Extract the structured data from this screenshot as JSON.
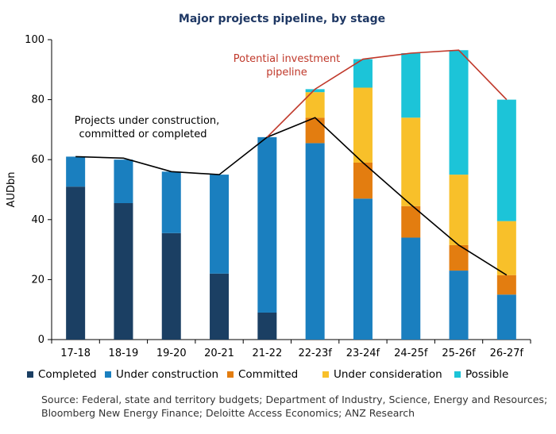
{
  "chart_data": {
    "type": "bar",
    "stacked": true,
    "title": "Major projects pipeline, by stage",
    "ylabel": "AUDbn",
    "xlabel": "",
    "ylim": [
      0,
      100
    ],
    "yticks": [
      0,
      20,
      40,
      60,
      80,
      100
    ],
    "grid": false,
    "legend_position": "bottom",
    "categories": [
      "17-18",
      "18-19",
      "19-20",
      "20-21",
      "21-22",
      "22-23f",
      "23-24f",
      "24-25f",
      "25-26f",
      "26-27f"
    ],
    "series": [
      {
        "name": "Completed",
        "color": "#1b3f63",
        "values": [
          51,
          45.5,
          35.5,
          22,
          9,
          0,
          0,
          0,
          0,
          0
        ]
      },
      {
        "name": "Under construction",
        "color": "#1a7fbf",
        "values": [
          10,
          14.5,
          20.5,
          33,
          58.5,
          65.5,
          47,
          34,
          23,
          15
        ]
      },
      {
        "name": "Committed",
        "color": "#e37d10",
        "values": [
          0,
          0,
          0,
          0,
          0,
          8.5,
          12,
          10.5,
          8.5,
          6.5
        ]
      },
      {
        "name": "Under consideration",
        "color": "#f8c02a",
        "values": [
          0,
          0,
          0,
          0,
          0,
          8.5,
          25,
          29.5,
          23.5,
          18
        ]
      },
      {
        "name": "Possible",
        "color": "#1cc4d8",
        "values": [
          0,
          0,
          0,
          0,
          0,
          1,
          9.5,
          21.5,
          41.5,
          40.5
        ]
      }
    ],
    "lines": [
      {
        "label": "Projects under construction, committed or completed",
        "color": "#000000",
        "values": [
          61,
          60.5,
          56,
          55,
          67.5,
          74,
          59,
          45,
          31.5,
          21.5
        ]
      },
      {
        "label": "Potential investment pipeline",
        "color": "#c0392b",
        "values": [
          null,
          null,
          null,
          null,
          67.5,
          83.5,
          93.5,
          95.5,
          96.5,
          80
        ]
      }
    ],
    "annotations": {
      "black_line_label": [
        "Projects under construction,",
        "committed or completed"
      ],
      "red_line_label": [
        "Potential investment",
        "pipeline"
      ]
    },
    "source": "Source: Federal, state and territory budgets; Department of Industry, Science, Energy and Resources; Bloomberg New Energy Finance; Deloitte Access Economics; ANZ Research"
  }
}
